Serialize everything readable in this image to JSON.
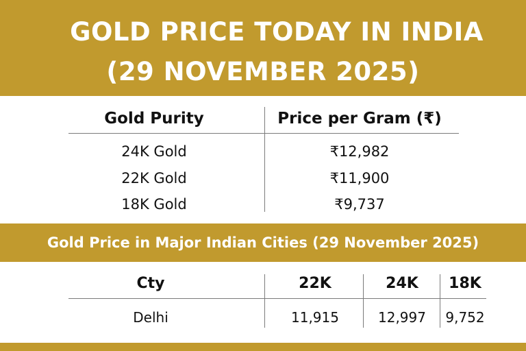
{
  "header": {
    "title_line1": "GOLD PRICE TODAY IN INDIA",
    "title_line2": "(29 NOVEMBER 2025)"
  },
  "purity_table": {
    "columns": [
      "Gold Purity",
      "Price per Gram (₹)"
    ],
    "rows": [
      [
        "24K Gold",
        "₹12,982"
      ],
      [
        "22K Gold",
        "₹11,900"
      ],
      [
        "18K Gold",
        "₹9,737"
      ]
    ]
  },
  "cities_section": {
    "title": "Gold Price in Major Indian Cities (29 November 2025)",
    "columns": [
      "Cty",
      "22K",
      "24K",
      "18K"
    ],
    "rows": [
      [
        "Delhi",
        "11,915",
        "12,997",
        "9,752"
      ]
    ]
  },
  "colors": {
    "accent_gold": "#c19a2e",
    "text": "#111111",
    "banner_text": "#ffffff"
  }
}
